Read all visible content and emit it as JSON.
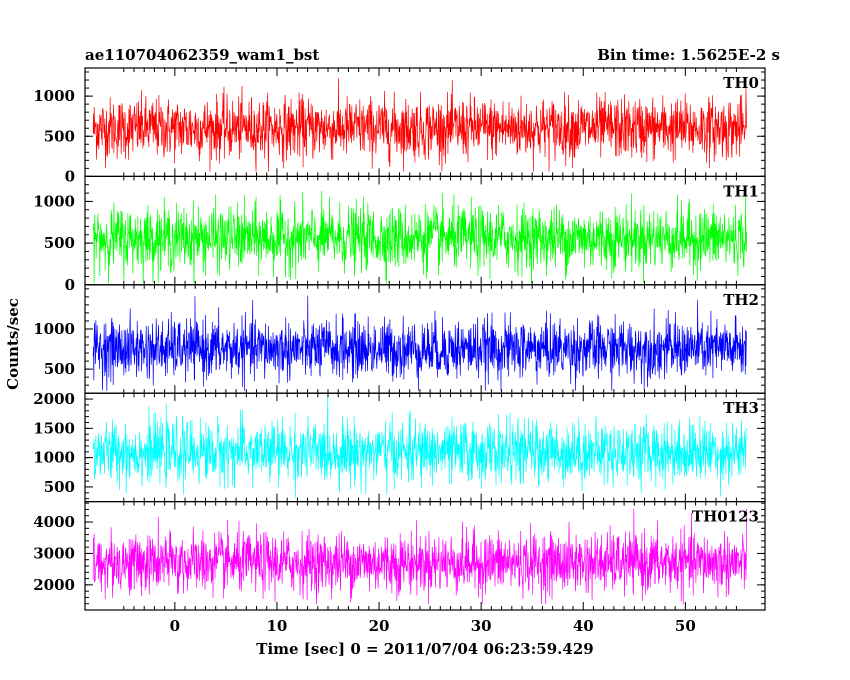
{
  "chart_data": {
    "type": "line",
    "title_left": "ae110704062359_wam1_bst",
    "title_right": "Bin time: 1.5625E-2 s",
    "xlabel": "Time [sec] 0 = 2011/07/04 06:23:59.429",
    "ylabel": "Counts/sec",
    "xlim": [
      -8.8,
      57.8
    ],
    "data_x_range": [
      -8.0,
      56.0
    ],
    "x_ticks": [
      0,
      10,
      20,
      30,
      40,
      50
    ],
    "x_tick_labels": [
      "0",
      "10",
      "20",
      "30",
      "40",
      "50"
    ],
    "panels": [
      {
        "name": "TH0",
        "color": "#ff0000",
        "ylim": [
          0,
          1350
        ],
        "y_ticks": [
          0,
          500,
          1000
        ],
        "y_tick_labels": [
          "0",
          "500",
          "1000"
        ],
        "signal": {
          "mean": 600,
          "sigma": 190,
          "min": 60,
          "max": 1340
        }
      },
      {
        "name": "TH1",
        "color": "#00ff00",
        "ylim": [
          0,
          1300
        ],
        "y_ticks": [
          0,
          500,
          1000
        ],
        "y_tick_labels": [
          "0",
          "500",
          "1000"
        ],
        "signal": {
          "mean": 560,
          "sigma": 190,
          "min": 20,
          "max": 1280
        }
      },
      {
        "name": "TH2",
        "color": "#0000ff",
        "ylim": [
          200,
          1550
        ],
        "y_ticks": [
          500,
          1000
        ],
        "y_tick_labels": [
          "500",
          "1000"
        ],
        "signal": {
          "mean": 750,
          "sigma": 185,
          "min": 230,
          "max": 1550
        }
      },
      {
        "name": "TH3",
        "color": "#00ffff",
        "ylim": [
          250,
          2100
        ],
        "y_ticks": [
          500,
          1000,
          1500,
          2000
        ],
        "y_tick_labels": [
          "500",
          "1000",
          "1500",
          "2000"
        ],
        "signal": {
          "mean": 1100,
          "sigma": 260,
          "min": 300,
          "max": 2100
        }
      },
      {
        "name": "TH0123",
        "color": "#ff00ff",
        "ylim": [
          1200,
          4650
        ],
        "y_ticks": [
          2000,
          3000,
          4000
        ],
        "y_tick_labels": [
          "2000",
          "3000",
          "4000"
        ],
        "signal": {
          "mean": 2700,
          "sigma": 480,
          "min": 1380,
          "max": 4600
        }
      }
    ]
  }
}
